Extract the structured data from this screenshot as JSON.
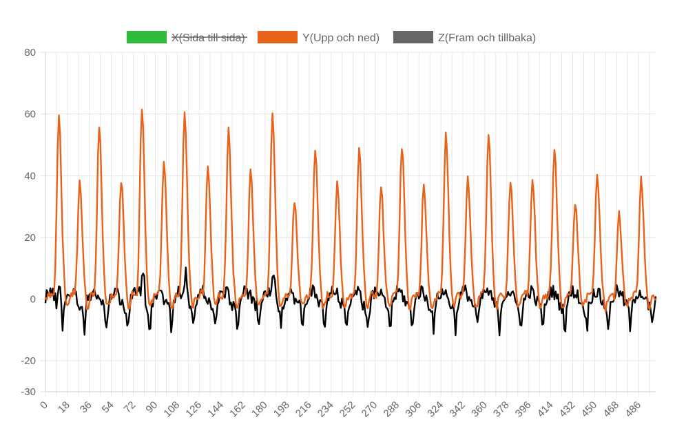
{
  "chart_data": {
    "type": "line",
    "title": "",
    "xlabel": "",
    "ylabel": "",
    "ylim": [
      -30,
      80
    ],
    "y_ticks": [
      80,
      60,
      40,
      20,
      0,
      -20,
      -30
    ],
    "x_ticks": [
      0,
      18,
      36,
      54,
      72,
      90,
      108,
      126,
      144,
      162,
      180,
      198,
      216,
      234,
      252,
      270,
      288,
      306,
      324,
      342,
      360,
      378,
      396,
      414,
      432,
      450,
      468,
      486
    ],
    "x_range": [
      0,
      500
    ],
    "grid": true,
    "legend_position": "top",
    "series": [
      {
        "name": "X(Sida till sida)",
        "color": "#2ebd3a",
        "hidden": true,
        "peaks": []
      },
      {
        "name": "Y(Upp och ned)",
        "color": "#e8621a",
        "hidden": false,
        "peaks": [
          {
            "x": 11,
            "y": 59
          },
          {
            "x": 28,
            "y": 38
          },
          {
            "x": 44,
            "y": 56
          },
          {
            "x": 62,
            "y": 39
          },
          {
            "x": 79,
            "y": 62
          },
          {
            "x": 97,
            "y": 44
          },
          {
            "x": 114,
            "y": 61
          },
          {
            "x": 133,
            "y": 43
          },
          {
            "x": 150,
            "y": 55
          },
          {
            "x": 168,
            "y": 41
          },
          {
            "x": 186,
            "y": 60
          },
          {
            "x": 204,
            "y": 31
          },
          {
            "x": 221,
            "y": 49
          },
          {
            "x": 239,
            "y": 37
          },
          {
            "x": 257,
            "y": 50
          },
          {
            "x": 275,
            "y": 36
          },
          {
            "x": 292,
            "y": 50
          },
          {
            "x": 310,
            "y": 37
          },
          {
            "x": 328,
            "y": 53
          },
          {
            "x": 346,
            "y": 40
          },
          {
            "x": 363,
            "y": 54
          },
          {
            "x": 381,
            "y": 39
          },
          {
            "x": 399,
            "y": 39
          },
          {
            "x": 417,
            "y": 49
          },
          {
            "x": 434,
            "y": 31
          },
          {
            "x": 452,
            "y": 41
          },
          {
            "x": 470,
            "y": 27
          },
          {
            "x": 488,
            "y": 39
          }
        ]
      },
      {
        "name": "Z(Fram och tillbaka)",
        "color": "#000000",
        "legend_color": "#666666",
        "hidden": false,
        "peaks": [
          {
            "x": 12,
            "y": 11
          },
          {
            "x": 80,
            "y": 14
          },
          {
            "x": 115,
            "y": 11
          },
          {
            "x": 187,
            "y": 11
          }
        ]
      }
    ]
  }
}
